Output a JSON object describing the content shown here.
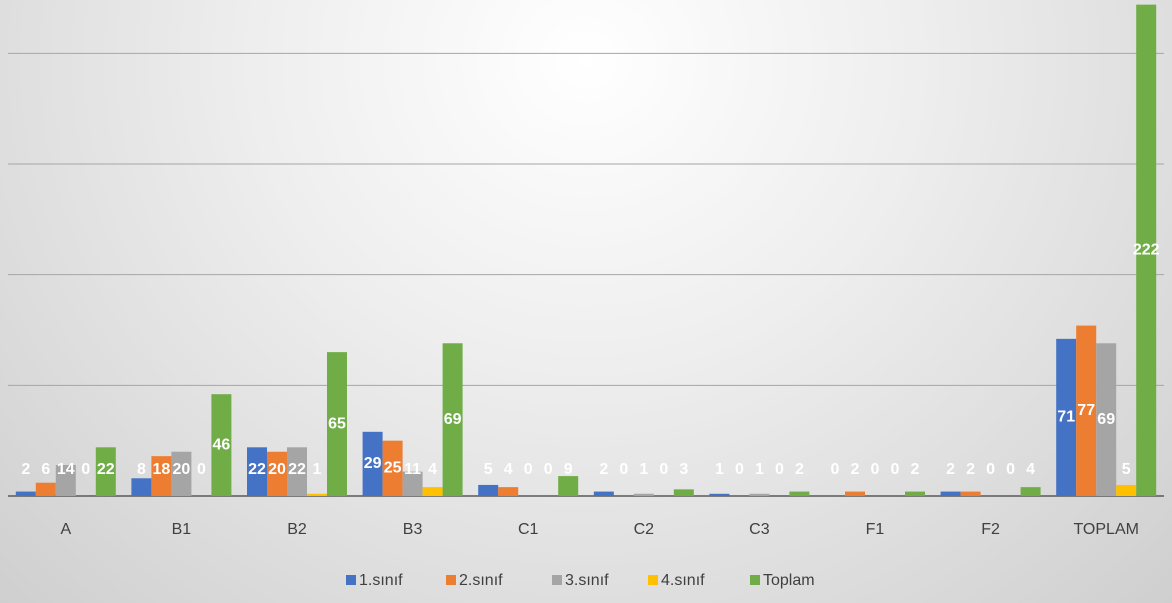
{
  "chart_data": {
    "type": "bar",
    "categories": [
      "A",
      "B1",
      "B2",
      "B3",
      "C1",
      "C2",
      "C3",
      "F1",
      "F2",
      "TOPLAM"
    ],
    "series": [
      {
        "name": "1.sınıf",
        "color": "#4472c4",
        "values": [
          2,
          8,
          22,
          29,
          5,
          2,
          1,
          0,
          2,
          71
        ]
      },
      {
        "name": "2.sınıf",
        "color": "#ed7d31",
        "values": [
          6,
          18,
          20,
          25,
          4,
          0,
          0,
          2,
          2,
          77
        ]
      },
      {
        "name": "3.sınıf",
        "color": "#a5a5a5",
        "values": [
          14,
          20,
          22,
          11,
          0,
          1,
          1,
          0,
          0,
          69
        ]
      },
      {
        "name": "4.sınıf",
        "color": "#ffc000",
        "values": [
          0,
          0,
          1,
          4,
          0,
          0,
          0,
          0,
          0,
          5
        ]
      },
      {
        "name": "Toplam",
        "color": "#70ad47",
        "values": [
          22,
          46,
          65,
          69,
          9,
          3,
          2,
          2,
          4,
          222
        ]
      }
    ],
    "ylim": [
      0,
      225
    ],
    "yticks": [
      0,
      50,
      100,
      150,
      200
    ],
    "grid": true,
    "legend": "bottom"
  }
}
